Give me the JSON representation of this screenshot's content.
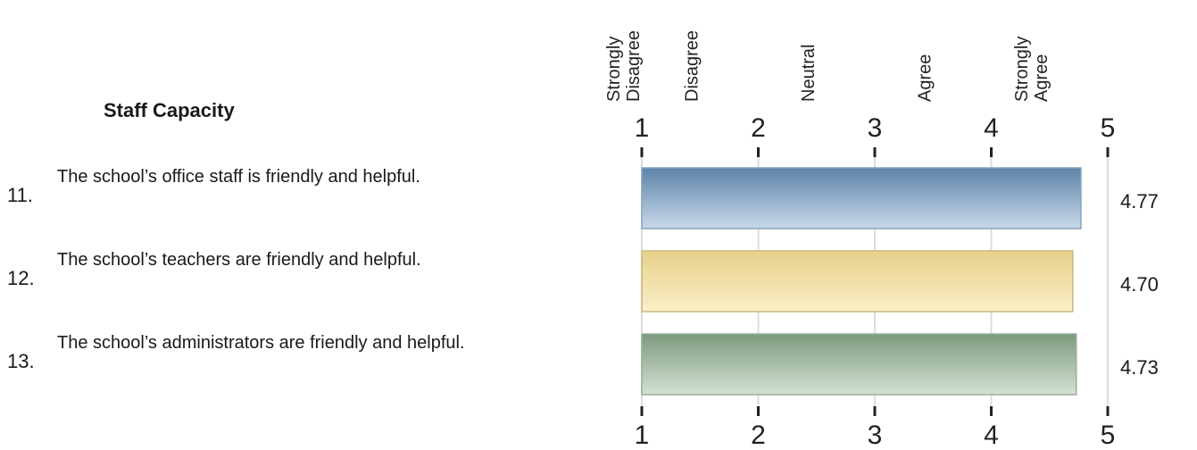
{
  "section_title": "Staff Capacity",
  "questions": [
    {
      "number": "11.",
      "text": "The school’s office staff is friendly and helpful.",
      "value_label": "4.77"
    },
    {
      "number": "12.",
      "text": "The school’s teachers are friendly and helpful.",
      "value_label": "4.70"
    },
    {
      "number": "13.",
      "text": "The school’s administrators are friendly and helpful.",
      "value_label": "4.73"
    }
  ],
  "chart_data": {
    "type": "bar",
    "orientation": "horizontal",
    "categories": [
      "11.",
      "12.",
      "13."
    ],
    "values": [
      4.77,
      4.7,
      4.73
    ],
    "xlim": [
      1,
      5
    ],
    "ticks": [
      "1",
      "2",
      "3",
      "4",
      "5"
    ],
    "scale_labels": [
      {
        "lines": [
          "Strongly",
          "Disagree"
        ],
        "value": 1.0
      },
      {
        "lines": [
          "Disagree"
        ],
        "value": 1.5
      },
      {
        "lines": [
          "Neutral"
        ],
        "value": 2.5
      },
      {
        "lines": [
          "Agree"
        ],
        "value": 3.5
      },
      {
        "lines": [
          "Strongly",
          "Agree"
        ],
        "value": 4.5
      }
    ],
    "grid": true,
    "bar_colors": [
      {
        "top": "#5d83a8",
        "bottom": "#c8d9ea",
        "stroke": "#8aa3bc"
      },
      {
        "top": "#e6d08a",
        "bottom": "#fbefc8",
        "stroke": "#c8b880"
      },
      {
        "top": "#7d9a7d",
        "bottom": "#d4e2d4",
        "stroke": "#9ab09a"
      }
    ]
  }
}
